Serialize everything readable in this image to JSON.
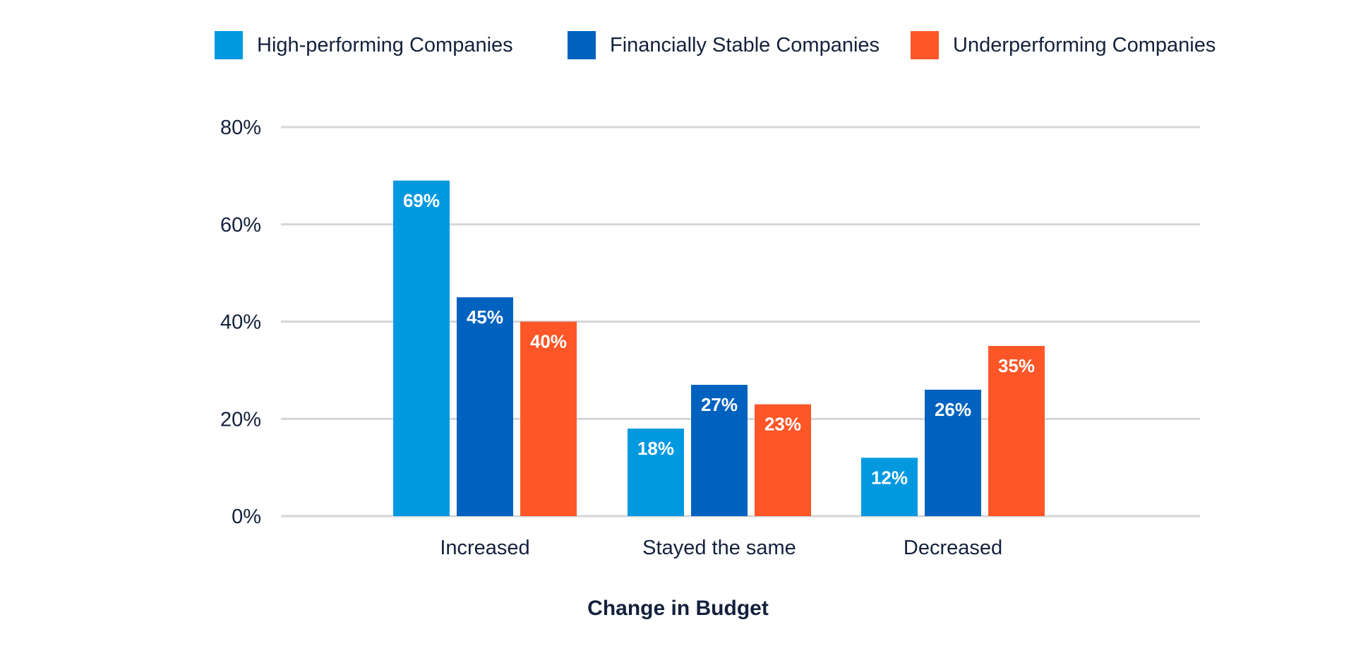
{
  "chart_data": {
    "type": "bar",
    "title": "",
    "xlabel": "Change in Budget",
    "ylabel": "",
    "ylim": [
      0,
      80
    ],
    "yticks": [
      "0%",
      "20%",
      "40%",
      "60%",
      "80%"
    ],
    "ytick_values": [
      0,
      20,
      40,
      60,
      80
    ],
    "grid": true,
    "legend_position": "top",
    "categories": [
      "Increased",
      "Stayed the same",
      "Decreased"
    ],
    "series": [
      {
        "name": "High-performing Companies",
        "color": "#0099E0",
        "values": [
          69,
          18,
          12
        ],
        "labels": [
          "69%",
          "18%",
          "12%"
        ]
      },
      {
        "name": "Financially Stable Companies",
        "color": "#0062BE",
        "values": [
          45,
          27,
          26
        ],
        "labels": [
          "45%",
          "27%",
          "26%"
        ]
      },
      {
        "name": "Underperforming Companies",
        "color": "#FF5628",
        "values": [
          40,
          23,
          35
        ],
        "labels": [
          "40%",
          "23%",
          "35%"
        ]
      }
    ]
  }
}
